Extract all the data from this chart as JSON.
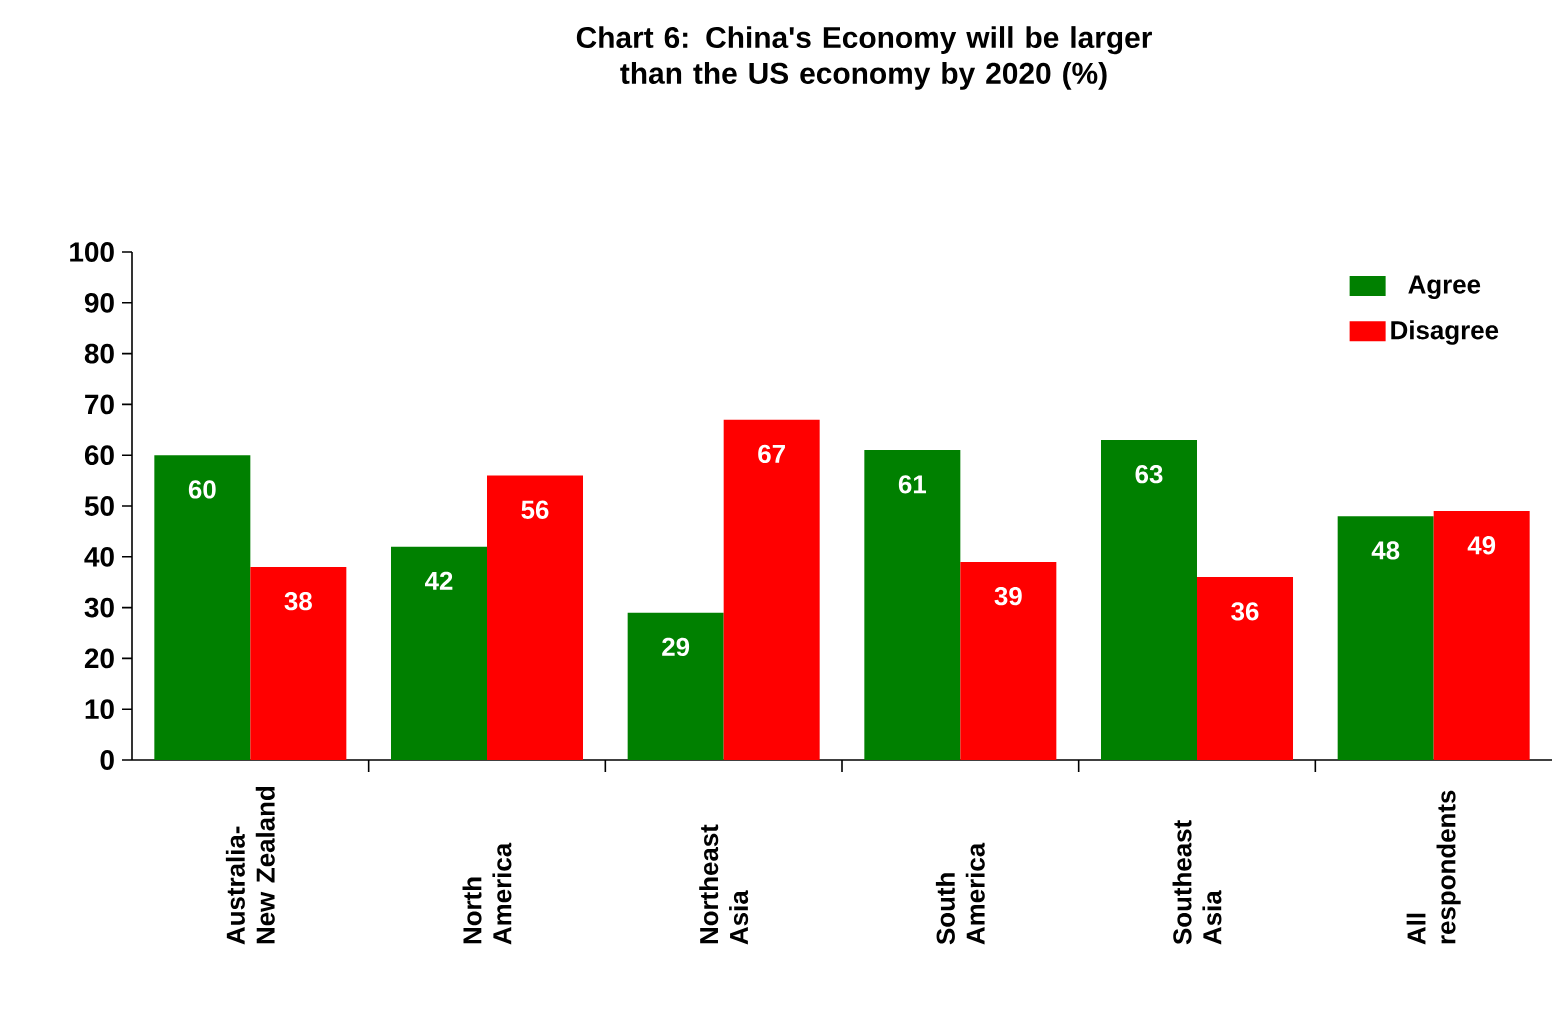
{
  "chart_data": {
    "type": "bar",
    "title": "Chart 6:  China's Economy will be larger than the US economy by 2020 (%)",
    "categories": [
      "Australia- New Zealand",
      "North America",
      "Northeast Asia",
      "South America",
      "Southeast Asia",
      "All respondents"
    ],
    "series": [
      {
        "name": "Agree",
        "color": "#008000",
        "values": [
          60,
          42,
          29,
          61,
          63,
          48
        ]
      },
      {
        "name": "Disagree",
        "color": "#ff0000",
        "values": [
          38,
          56,
          67,
          39,
          36,
          49
        ]
      }
    ],
    "ylim": [
      0,
      100
    ],
    "yticks": [
      0,
      10,
      20,
      30,
      40,
      50,
      60,
      70,
      80,
      90,
      100
    ],
    "data_labels": true,
    "legend": "top right",
    "grid": false
  }
}
